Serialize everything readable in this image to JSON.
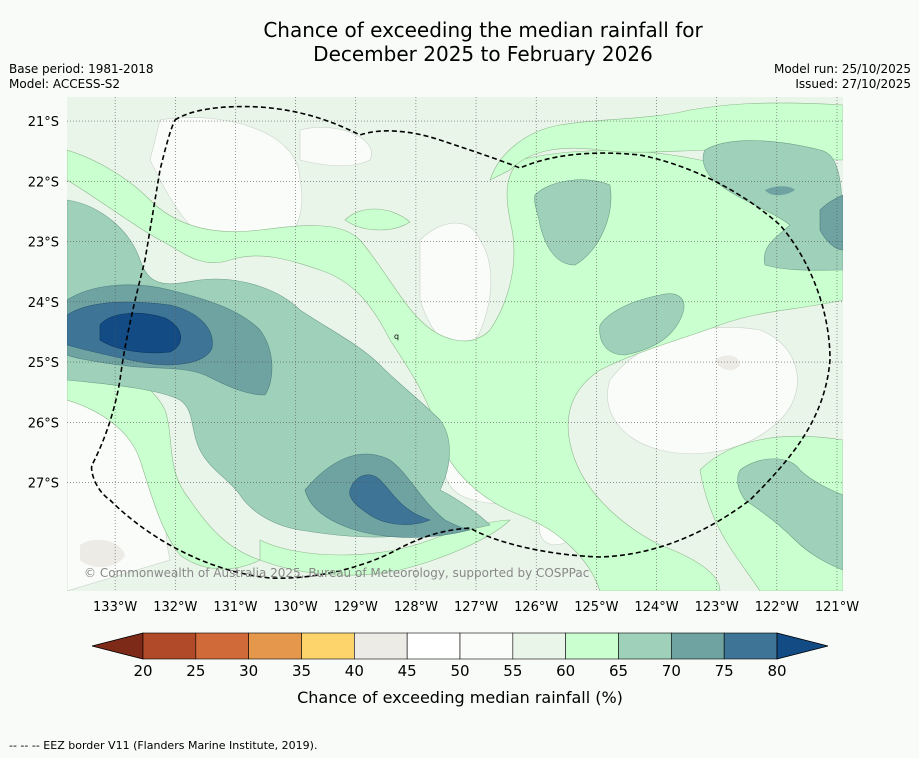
{
  "title": {
    "line1": "Chance of exceeding the median rainfall for",
    "line2": "December 2025 to February 2026"
  },
  "meta_left": {
    "base_period": "Base period: 1981-2018",
    "model": "Model: ACCESS-S2"
  },
  "meta_right": {
    "model_run": "Model run: 25/10/2025",
    "issued": "Issued: 27/10/2025"
  },
  "map": {
    "lat_labels": [
      "21°S",
      "22°S",
      "23°S",
      "24°S",
      "25°S",
      "26°S",
      "27°S"
    ],
    "lon_labels": [
      "133°W",
      "132°W",
      "131°W",
      "130°W",
      "129°W",
      "128°W",
      "127°W",
      "126°W",
      "125°W",
      "124°W",
      "123°W",
      "122°W",
      "121°W"
    ],
    "lon_range": [
      133.8,
      120.9
    ],
    "lat_range": [
      20.6,
      28.8
    ],
    "copyright": "© Commonwealth of Australia 2025, Bureau of Meteorology, supported by COSPPac",
    "small_mark": "q"
  },
  "colorbar": {
    "ticks": [
      "20",
      "25",
      "30",
      "35",
      "40",
      "45",
      "50",
      "55",
      "60",
      "65",
      "70",
      "75",
      "80"
    ],
    "colors": [
      "#7e2a18",
      "#b04a28",
      "#d06a38",
      "#e5984c",
      "#fdd36b",
      "#ecebe6",
      "#ffffff",
      "#fafcf9",
      "#eaf5ea",
      "#caffcf",
      "#9fd1ba",
      "#6ea3a2",
      "#3e7596",
      "#134b85"
    ],
    "label": "Chance of exceeding median rainfall (%)"
  },
  "footnote": "--  --  -- EEZ border V11 (Flanders Marine Institute, 2019)."
}
